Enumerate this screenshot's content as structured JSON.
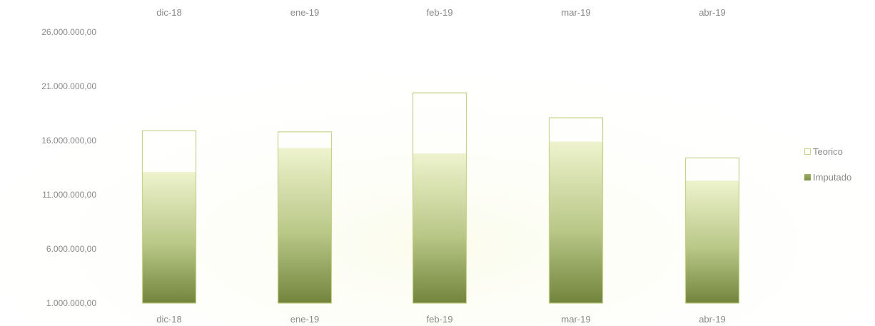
{
  "chart_data": {
    "type": "bar",
    "categories": [
      "dic-18",
      "ene-19",
      "feb-19",
      "mar-19",
      "abr-19"
    ],
    "series": [
      {
        "name": "Teorico",
        "values": [
          16900000,
          16800000,
          20400000,
          18100000,
          14400000
        ]
      },
      {
        "name": "Imputado",
        "values": [
          13100000,
          15300000,
          14800000,
          15900000,
          12300000
        ]
      }
    ],
    "ylim": [
      1000000,
      26000000
    ],
    "yticks": [
      1000000,
      6000000,
      11000000,
      16000000,
      21000000,
      26000000
    ],
    "ytick_labels": [
      "1.000.000,00",
      "6.000.000,00",
      "11.000.000,00",
      "16.000.000,00",
      "21.000.000,00",
      "26.000.000,00"
    ],
    "category_labels_top": true,
    "category_labels_bottom": true,
    "grid": false,
    "legend_position": "right",
    "colors": {
      "teorico_outline": "#c9d28a",
      "imputado_top": "#e9efc2",
      "imputado_bottom": "#75873f",
      "label": "#8a8a8a"
    }
  },
  "legend": {
    "items": [
      {
        "label": "Teorico",
        "swatch": "outline"
      },
      {
        "label": "Imputado",
        "swatch": "filled"
      }
    ]
  }
}
